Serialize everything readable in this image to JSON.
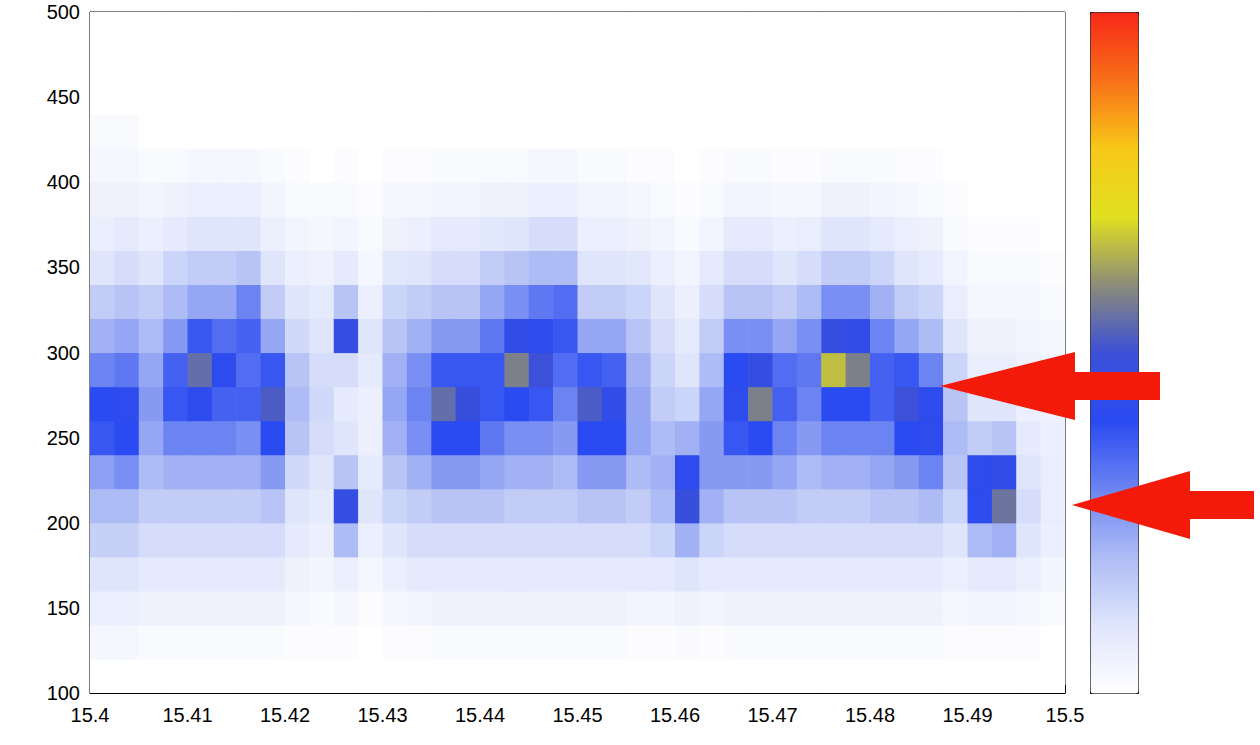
{
  "chart_data": {
    "type": "heatmap",
    "xlim": [
      15.4,
      15.5
    ],
    "xticks": [
      15.4,
      15.41,
      15.42,
      15.43,
      15.44,
      15.45,
      15.46,
      15.47,
      15.48,
      15.49,
      15.5
    ],
    "ylim": [
      100,
      500
    ],
    "yticks": [
      100,
      150,
      200,
      250,
      300,
      350,
      400,
      450,
      500
    ],
    "grid": true,
    "x_bins": [
      15.4,
      15.4025,
      15.405,
      15.4075,
      15.41,
      15.4125,
      15.415,
      15.4175,
      15.42,
      15.4225,
      15.425,
      15.4275,
      15.43,
      15.4325,
      15.435,
      15.4375,
      15.44,
      15.4425,
      15.445,
      15.4475,
      15.45,
      15.4525,
      15.455,
      15.4575,
      15.46,
      15.4625,
      15.465,
      15.4675,
      15.47,
      15.4725,
      15.475,
      15.4775,
      15.48,
      15.4825,
      15.485,
      15.4875,
      15.49,
      15.4925,
      15.495,
      15.4975,
      15.5
    ],
    "y_bins": [
      100,
      120,
      140,
      160,
      180,
      200,
      220,
      240,
      260,
      280,
      300,
      320,
      340,
      360,
      380,
      400,
      420,
      440,
      460,
      480,
      500
    ],
    "cells": [
      [
        0,
        0.3,
        0.6,
        1,
        1.5,
        2,
        2.5,
        3.8,
        4,
        3,
        2.2,
        1.6,
        1,
        0.7,
        0.5,
        0.3,
        0.2,
        0,
        0,
        0
      ],
      [
        0,
        0.3,
        0.6,
        1,
        1.5,
        2,
        2.8,
        4,
        4.2,
        3.2,
        2.4,
        1.8,
        1.2,
        0.8,
        0.5,
        0.3,
        0.2,
        0,
        0,
        0
      ],
      [
        0,
        0.2,
        0.5,
        0.8,
        1.2,
        1.6,
        2,
        2.4,
        2.6,
        2.4,
        2,
        1.6,
        1,
        0.6,
        0.4,
        0.2,
        0,
        0,
        0,
        0
      ],
      [
        0,
        0.2,
        0.5,
        0.8,
        1.2,
        1.6,
        2.2,
        3,
        3.8,
        3.6,
        2.6,
        2,
        1.4,
        0.8,
        0.5,
        0.2,
        0,
        0,
        0,
        0
      ],
      [
        0,
        0.2,
        0.5,
        0.8,
        1.2,
        1.6,
        2.2,
        3,
        4.2,
        5.5,
        3.8,
        2.4,
        1.6,
        1,
        0.6,
        0.3,
        0,
        0,
        0,
        0
      ],
      [
        0,
        0.2,
        0.5,
        0.8,
        1.2,
        1.6,
        2.2,
        3,
        3.6,
        4.2,
        3.4,
        2.4,
        1.6,
        1,
        0.6,
        0.3,
        0,
        0,
        0,
        0
      ],
      [
        0,
        0.2,
        0.5,
        0.8,
        1.2,
        1.6,
        2.2,
        2.8,
        3.6,
        3.4,
        3.6,
        3,
        1.8,
        1,
        0.6,
        0.3,
        0,
        0,
        0,
        0
      ],
      [
        0,
        0.2,
        0.5,
        0.8,
        1.2,
        1.8,
        2.6,
        4,
        5.2,
        3.8,
        2.4,
        1.6,
        1,
        0.6,
        0.4,
        0.2,
        0,
        0,
        0,
        0
      ],
      [
        0,
        0.1,
        0.3,
        0.5,
        0.8,
        1,
        1.3,
        1.8,
        2,
        1.8,
        1.3,
        1,
        0.6,
        0.4,
        0.2,
        0.1,
        0,
        0,
        0,
        0
      ],
      [
        0,
        0.1,
        0.2,
        0.4,
        0.6,
        0.8,
        1,
        1.2,
        1.3,
        1.2,
        1,
        0.8,
        0.5,
        0.3,
        0.2,
        0,
        0,
        0,
        0,
        0
      ],
      [
        0,
        0.1,
        0.3,
        0.6,
        2,
        4.6,
        1.8,
        1,
        0.8,
        1.2,
        4.6,
        1.8,
        0.8,
        0.4,
        0.2,
        0.1,
        0,
        0,
        0,
        0
      ],
      [
        0,
        0,
        0.1,
        0.3,
        0.6,
        1,
        0.8,
        0.6,
        0.6,
        0.8,
        1,
        0.6,
        0.3,
        0.2,
        0.1,
        0,
        0,
        0,
        0,
        0
      ],
      [
        0,
        0.1,
        0.3,
        0.6,
        1,
        1.4,
        1.8,
        2.2,
        2.4,
        2.2,
        1.8,
        1.4,
        0.9,
        0.5,
        0.3,
        0.1,
        0,
        0,
        0,
        0
      ],
      [
        0,
        0.1,
        0.4,
        0.8,
        1.2,
        1.6,
        2.2,
        2.8,
        3,
        2.8,
        2.2,
        1.6,
        1,
        0.6,
        0.3,
        0.1,
        0,
        0,
        0,
        0
      ],
      [
        0,
        0.2,
        0.5,
        0.8,
        1.2,
        1.8,
        2.6,
        4,
        5.5,
        3.8,
        2.6,
        1.8,
        1.2,
        0.8,
        0.4,
        0.2,
        0,
        0,
        0,
        0
      ],
      [
        0,
        0.2,
        0.5,
        0.8,
        1.2,
        1.8,
        2.6,
        4,
        4.8,
        3.8,
        2.6,
        1.8,
        1.2,
        0.8,
        0.4,
        0.2,
        0,
        0,
        0,
        0
      ],
      [
        0,
        0.2,
        0.5,
        0.8,
        1.2,
        1.8,
        2.4,
        3.2,
        3.8,
        3.8,
        3.2,
        2.4,
        1.6,
        0.9,
        0.5,
        0.2,
        0,
        0,
        0,
        0
      ],
      [
        0,
        0.2,
        0.5,
        0.8,
        1.2,
        1.6,
        2.2,
        2.8,
        4,
        5.8,
        4.4,
        2.8,
        1.8,
        1,
        0.5,
        0.2,
        0,
        0,
        0,
        0
      ],
      [
        0,
        0.2,
        0.5,
        0.8,
        1.2,
        1.6,
        2.2,
        2.8,
        3.8,
        5,
        4.2,
        3.2,
        2,
        1.2,
        0.6,
        0.3,
        0,
        0,
        0,
        0
      ],
      [
        0,
        0.2,
        0.5,
        0.8,
        1.2,
        1.6,
        2,
        2.6,
        3,
        3.4,
        3.8,
        3.4,
        2,
        1.2,
        0.6,
        0.3,
        0,
        0,
        0,
        0
      ],
      [
        0,
        0.2,
        0.5,
        0.8,
        1.2,
        1.8,
        2.6,
        4,
        5.2,
        3.8,
        2.4,
        1.6,
        1,
        0.6,
        0.4,
        0.2,
        0,
        0,
        0,
        0
      ],
      [
        0,
        0.2,
        0.5,
        0.8,
        1.2,
        1.8,
        2.6,
        4,
        4.4,
        3.6,
        2.4,
        1.6,
        1,
        0.6,
        0.4,
        0.2,
        0,
        0,
        0,
        0
      ],
      [
        0,
        0.1,
        0.4,
        0.8,
        1.2,
        1.6,
        2,
        2.4,
        2.4,
        2.2,
        1.8,
        1.4,
        0.9,
        0.5,
        0.3,
        0.1,
        0,
        0,
        0,
        0
      ],
      [
        0,
        0.1,
        0.4,
        0.8,
        1.4,
        2,
        2.2,
        2,
        1.6,
        1.4,
        1.2,
        1,
        0.6,
        0.4,
        0.2,
        0.1,
        0,
        0,
        0,
        0
      ],
      [
        0,
        0.2,
        0.5,
        1,
        2.2,
        4.8,
        4.2,
        2.2,
        1.4,
        1,
        0.8,
        0.6,
        0.4,
        0.2,
        0.1,
        0,
        0,
        0,
        0,
        0
      ],
      [
        0,
        0.1,
        0.4,
        0.8,
        1.4,
        2.2,
        2.6,
        2.6,
        2.4,
        2,
        1.6,
        1.2,
        0.8,
        0.4,
        0.2,
        0.1,
        0,
        0,
        0,
        0
      ],
      [
        0,
        0.2,
        0.5,
        0.8,
        1.2,
        1.8,
        2.6,
        3.8,
        4.2,
        4,
        2.8,
        1.8,
        1.2,
        0.8,
        0.4,
        0.2,
        0,
        0,
        0,
        0
      ],
      [
        0,
        0.2,
        0.5,
        0.8,
        1.2,
        1.8,
        2.6,
        4,
        5.8,
        4.6,
        2.8,
        1.8,
        1.2,
        0.8,
        0.4,
        0.2,
        0,
        0,
        0,
        0
      ],
      [
        0,
        0.2,
        0.5,
        0.8,
        1.2,
        1.8,
        2.4,
        3,
        3.6,
        3.4,
        2.4,
        1.6,
        1,
        0.6,
        0.3,
        0.1,
        0,
        0,
        0,
        0
      ],
      [
        0,
        0.2,
        0.5,
        0.8,
        1.2,
        1.6,
        2,
        2.6,
        3,
        3.2,
        2.8,
        2,
        1.2,
        0.7,
        0.3,
        0.1,
        0,
        0,
        0,
        0
      ],
      [
        0,
        0.2,
        0.5,
        0.8,
        1.2,
        1.6,
        2.2,
        3,
        4,
        6.6,
        4.6,
        2.8,
        1.6,
        1,
        0.5,
        0.2,
        0,
        0,
        0,
        0
      ],
      [
        0,
        0.2,
        0.5,
        0.8,
        1.2,
        1.6,
        2.2,
        3,
        4,
        5.8,
        4.4,
        2.8,
        1.6,
        1,
        0.5,
        0.2,
        0,
        0,
        0,
        0
      ],
      [
        0,
        0.2,
        0.5,
        0.8,
        1.2,
        1.8,
        2.4,
        3,
        3.6,
        3.6,
        3,
        2.2,
        1.4,
        0.8,
        0.4,
        0.2,
        0,
        0,
        0,
        0
      ],
      [
        0,
        0.2,
        0.5,
        0.8,
        1.2,
        1.8,
        2.6,
        4,
        5,
        3.8,
        2.4,
        1.6,
        1,
        0.6,
        0.3,
        0.1,
        0,
        0,
        0,
        0
      ],
      [
        0,
        0.2,
        0.5,
        0.8,
        1.2,
        2,
        3,
        4.2,
        4.2,
        3,
        2,
        1.4,
        0.8,
        0.5,
        0.2,
        0.1,
        0,
        0,
        0,
        0
      ],
      [
        0,
        0.1,
        0.3,
        0.6,
        1,
        1.4,
        1.8,
        2,
        1.8,
        1.4,
        1,
        0.7,
        0.4,
        0.2,
        0.1,
        0,
        0,
        0,
        0,
        0
      ],
      [
        0,
        0.1,
        0.4,
        0.8,
        2,
        4.2,
        4.2,
        1.6,
        1,
        0.7,
        0.5,
        0.3,
        0.2,
        0.1,
        0,
        0,
        0,
        0,
        0,
        0
      ],
      [
        0,
        0.1,
        0.4,
        0.8,
        2.2,
        5.6,
        4.4,
        1.8,
        1,
        0.7,
        0.5,
        0.3,
        0.2,
        0.1,
        0,
        0,
        0,
        0,
        0,
        0
      ],
      [
        0,
        0.1,
        0.3,
        0.6,
        1,
        1.2,
        1,
        0.8,
        0.6,
        0.5,
        0.4,
        0.3,
        0.2,
        0.1,
        0,
        0,
        0,
        0,
        0,
        0
      ],
      [
        0,
        0,
        0.2,
        0.4,
        0.6,
        0.7,
        0.7,
        0.6,
        0.5,
        0.4,
        0.3,
        0.2,
        0.1,
        0,
        0,
        0,
        0,
        0,
        0,
        0
      ]
    ],
    "colorbar": {
      "range": [
        0,
        10
      ],
      "colors": [
        "#ffffff",
        "#dfe5fb",
        "#aebcf5",
        "#6c84f2",
        "#2a4af2",
        "#3c50d8",
        "#8c8c78",
        "#e0e020",
        "#f8c818",
        "#f87018",
        "#f82818"
      ]
    }
  }
}
